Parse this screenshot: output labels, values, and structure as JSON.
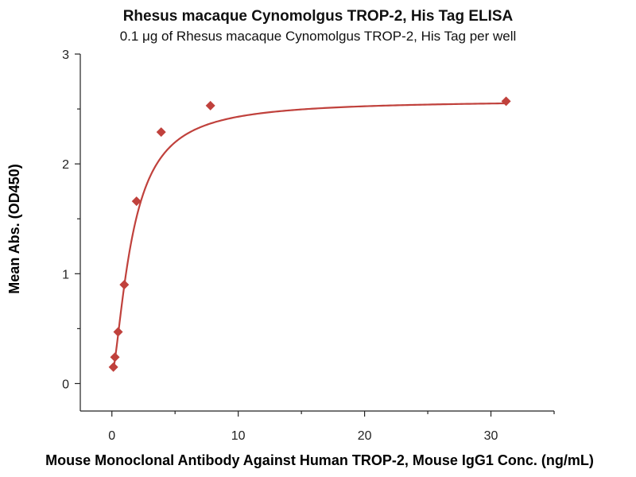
{
  "chart_data": {
    "type": "scatter",
    "title": "Rhesus macaque Cynomolgus TROP-2, His Tag ELISA",
    "subtitle": "0.1 μg of Rhesus macaque Cynomolgus TROP-2, His Tag per well",
    "xlabel": "Mouse Monoclonal Antibody Against Human TROP-2, Mouse IgG1 Conc. (ng/mL)",
    "ylabel": "Mean Abs. (OD450)",
    "xlim": [
      -2.5,
      35
    ],
    "ylim": [
      -0.25,
      3
    ],
    "xticks": [
      0,
      10,
      20,
      30
    ],
    "yticks": [
      0,
      1,
      2,
      3
    ],
    "xtick_labels": [
      "0",
      "10",
      "20",
      "30"
    ],
    "ytick_labels": [
      "0",
      "1",
      "2",
      "3"
    ],
    "grid": false,
    "legend": "none",
    "series": [
      {
        "marker": "diamond",
        "color": "#c0413c",
        "points": [
          {
            "x": 0.12,
            "y": 0.15
          },
          {
            "x": 0.24,
            "y": 0.24
          },
          {
            "x": 0.49,
            "y": 0.47
          },
          {
            "x": 0.98,
            "y": 0.9
          },
          {
            "x": 1.95,
            "y": 1.66
          },
          {
            "x": 3.9,
            "y": 2.29
          },
          {
            "x": 7.8,
            "y": 2.53
          },
          {
            "x": 31.2,
            "y": 2.57
          }
        ]
      }
    ],
    "fit_curve": {
      "color": "#c0413c",
      "model": "4PL",
      "bottom": 0.08,
      "top": 2.58,
      "ec50": 1.6,
      "hill": 1.5
    }
  }
}
